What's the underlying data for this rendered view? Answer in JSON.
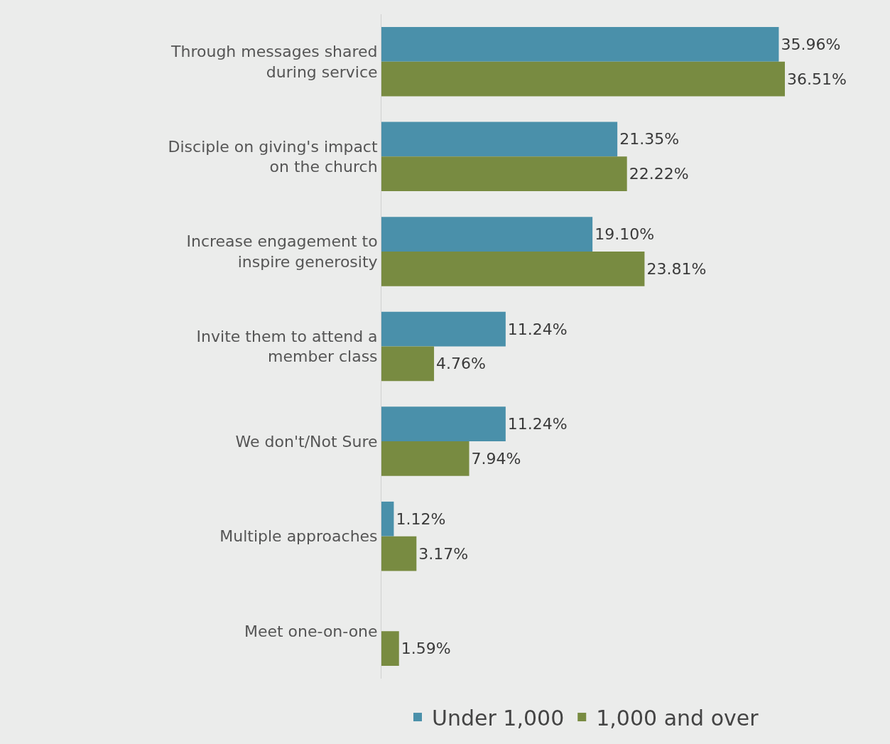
{
  "chart_data": {
    "type": "bar",
    "orientation": "horizontal",
    "categories": [
      "Through messages shared during service",
      "Disciple on giving's impact on the church",
      "Increase engagement to inspire generosity",
      "Invite them to attend a member class",
      "We don't/Not Sure",
      "Multiple approaches",
      "Meet one-on-one"
    ],
    "series": [
      {
        "name": "Under 1,000",
        "color": "#4a90aa",
        "values": [
          35.96,
          21.35,
          19.1,
          11.24,
          11.24,
          1.12,
          null
        ],
        "value_labels": [
          "35.96%",
          "21.35%",
          "19.10%",
          "11.24%",
          "11.24%",
          "1.12%",
          null
        ]
      },
      {
        "name": "1,000 and over",
        "color": "#788b41",
        "values": [
          36.51,
          22.22,
          23.81,
          4.76,
          7.94,
          3.17,
          1.59
        ],
        "value_labels": [
          "36.51%",
          "22.22%",
          "23.81%",
          "4.76%",
          "7.94%",
          "3.17%",
          "1.59%"
        ]
      }
    ],
    "legend": "bottom",
    "grid": false
  }
}
